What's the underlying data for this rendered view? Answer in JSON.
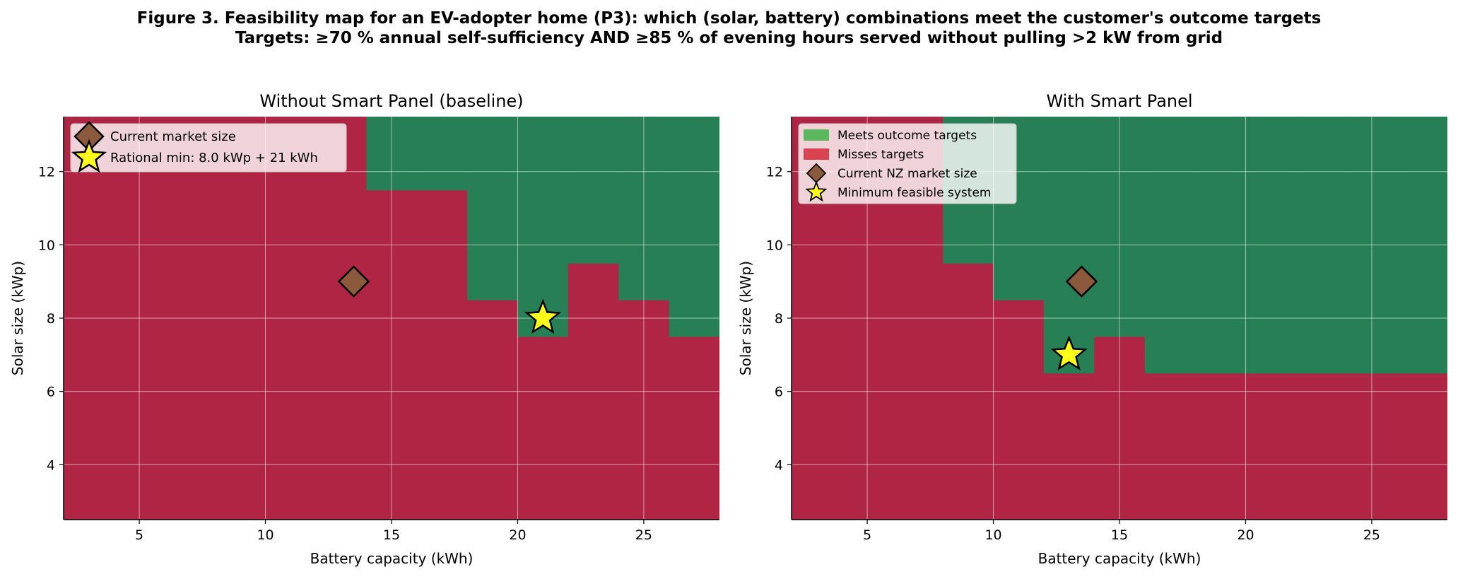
{
  "figure": {
    "title_line1": "Figure 3. Feasibility map for an EV-adopter home (P3): which (solar, battery) combinations meet the customer's outcome targets",
    "title_line2": "Targets: ≥70 % annual self-sufficiency AND ≥85 % of evening hours served without pulling >2 kW from grid"
  },
  "colors": {
    "meets": "#277f56",
    "misses": "#b02444",
    "legend_meets": "#5cb85c",
    "legend_misses": "#d9424f",
    "diamond": "#8b5a3c",
    "star": "#ffff1a",
    "grid": "#ffffff"
  },
  "chart_data": [
    {
      "type": "heatmap",
      "title": "Without Smart Panel (baseline)",
      "xlabel": "Battery capacity (kWh)",
      "ylabel": "Solar size (kWp)",
      "xlim": [
        2,
        28
      ],
      "ylim": [
        2.5,
        13.5
      ],
      "xticks": [
        5,
        10,
        15,
        20,
        25
      ],
      "yticks": [
        4,
        6,
        8,
        10,
        12
      ],
      "grid": true,
      "legend_position": "top-left",
      "battery_cells": [
        2,
        4,
        6,
        8,
        10,
        12,
        14,
        16,
        18,
        20,
        22,
        24,
        26,
        28
      ],
      "solar_cells": [
        2.5,
        3,
        3.5,
        4,
        4.5,
        5,
        5.5,
        6,
        6.5,
        7,
        7.5,
        8,
        8.5,
        9,
        9.5,
        10,
        10.5,
        11,
        11.5,
        12,
        12.5,
        13,
        13.5
      ],
      "min_feasible_solar_by_battery": [
        null,
        null,
        null,
        null,
        null,
        null,
        11.5,
        11.5,
        8.5,
        7.5,
        9.5,
        8.5,
        7.5
      ],
      "special_cells": [
        {
          "battery": [
            14,
            16
          ],
          "solar": [
            12.5,
            13.5
          ],
          "meets": true
        }
      ],
      "markers": [
        {
          "kind": "diamond",
          "label": "Current market size",
          "battery": 13.5,
          "solar": 9
        },
        {
          "kind": "star",
          "label": "Rational min: 8.0 kWp + 21 kWh",
          "battery": 21,
          "solar": 8
        }
      ],
      "legend": [
        {
          "kind": "diamond",
          "label": "Current market size"
        },
        {
          "kind": "star",
          "label": "Rational min: 8.0 kWp + 21 kWh"
        }
      ]
    },
    {
      "type": "heatmap",
      "title": "With Smart Panel",
      "xlabel": "Battery capacity (kWh)",
      "ylabel": "Solar size (kWp)",
      "xlim": [
        2,
        28
      ],
      "ylim": [
        2.5,
        13.5
      ],
      "xticks": [
        5,
        10,
        15,
        20,
        25
      ],
      "yticks": [
        4,
        6,
        8,
        10,
        12
      ],
      "grid": true,
      "legend_position": "top-left",
      "battery_cells": [
        2,
        4,
        6,
        8,
        10,
        12,
        14,
        16,
        18,
        20,
        22,
        24,
        26,
        28
      ],
      "solar_cells": [
        2.5,
        3,
        3.5,
        4,
        4.5,
        5,
        5.5,
        6,
        6.5,
        7,
        7.5,
        8,
        8.5,
        9,
        9.5,
        10,
        10.5,
        11,
        11.5,
        12,
        12.5,
        13,
        13.5
      ],
      "min_feasible_solar_by_battery": [
        null,
        null,
        null,
        9.5,
        8.5,
        6.5,
        7.5,
        6.5,
        6.5,
        6.5,
        6.5,
        6.5,
        6.5
      ],
      "special_cells": [],
      "markers": [
        {
          "kind": "diamond",
          "label": "Current NZ market size",
          "battery": 13.5,
          "solar": 9
        },
        {
          "kind": "star",
          "label": "Minimum feasible system",
          "battery": 13,
          "solar": 7
        }
      ],
      "legend": [
        {
          "kind": "patch",
          "color_key": "legend_meets",
          "label": "Meets outcome targets"
        },
        {
          "kind": "patch",
          "color_key": "legend_misses",
          "label": "Misses targets"
        },
        {
          "kind": "diamond",
          "label": "Current NZ market size"
        },
        {
          "kind": "star",
          "label": "Minimum feasible system"
        }
      ]
    }
  ]
}
